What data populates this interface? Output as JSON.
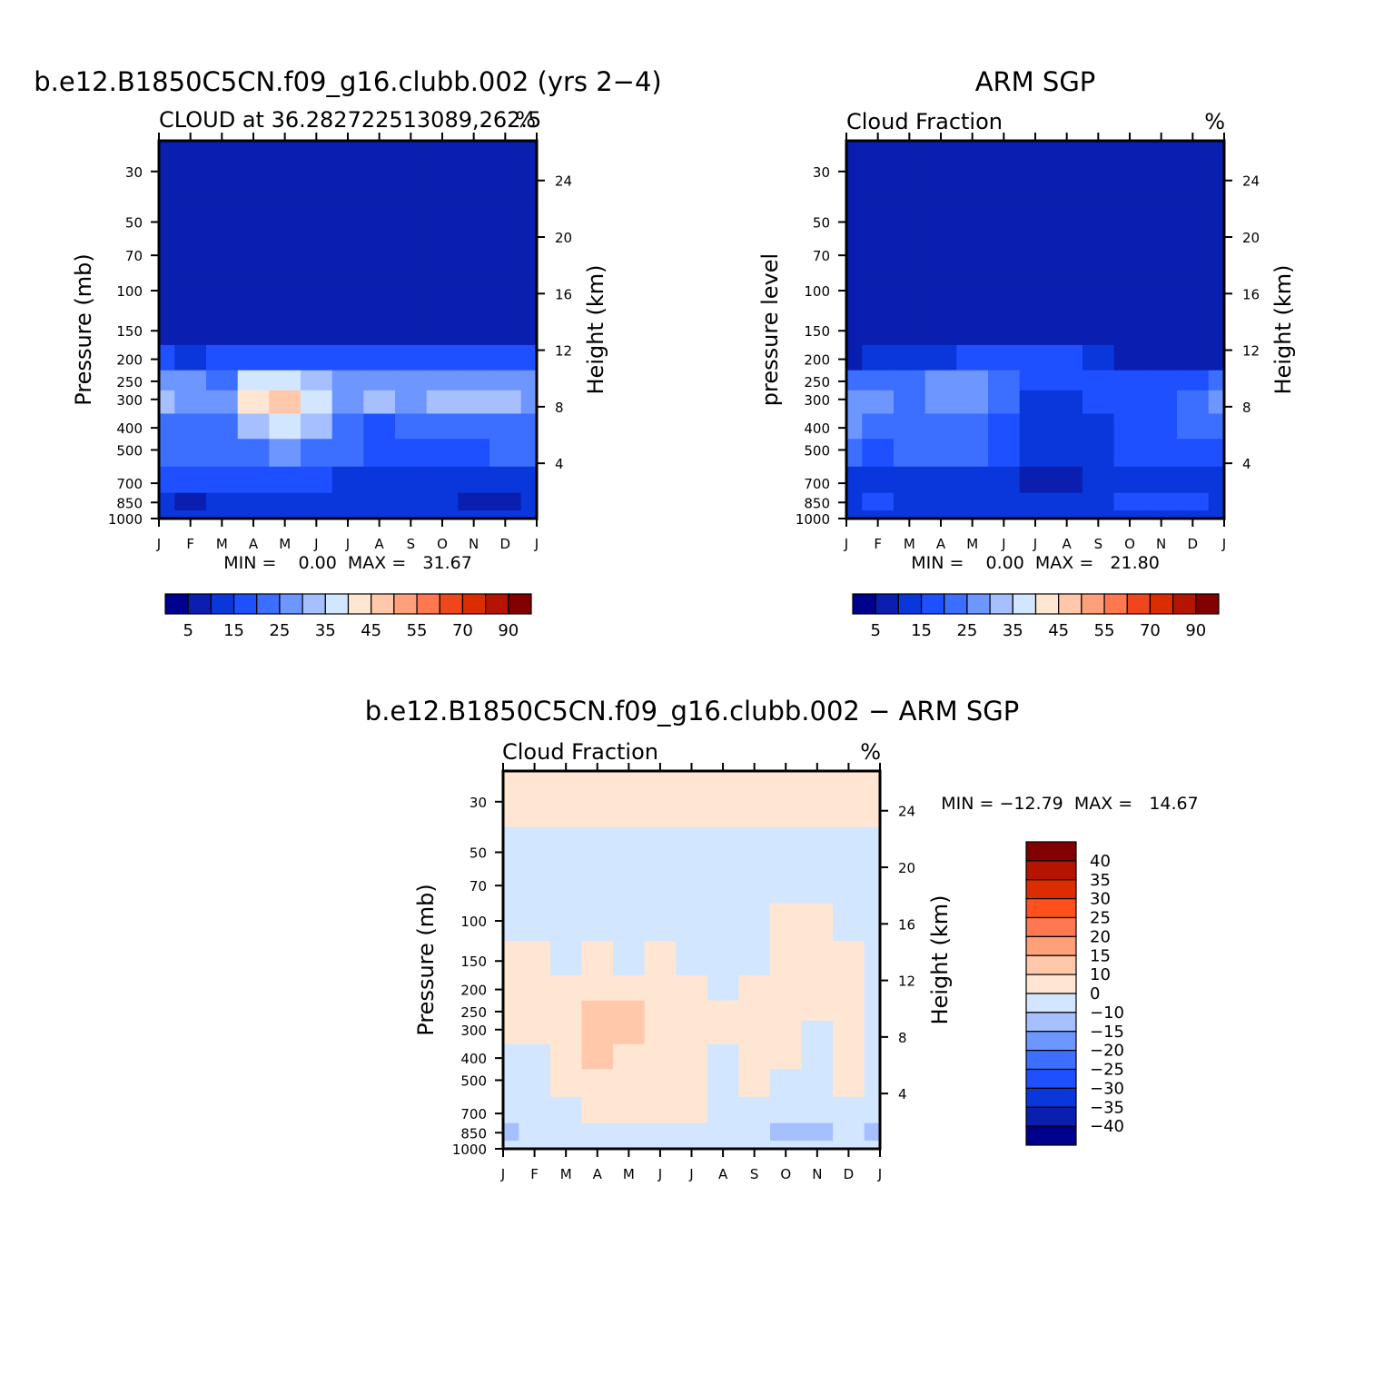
{
  "chart_data": [
    {
      "type": "heatmap",
      "id": "p1",
      "title": "b.e12.B1850C5CN.f09_g16.clubb.002 (yrs 2−4)",
      "subtitle_left": "CLOUD at 36.282722513089,262.5",
      "subtitle_right": "%",
      "ylabel": "Pressure (mb)",
      "ylabel_right": "Height (km)",
      "x_ticks": [
        "J",
        "F",
        "M",
        "A",
        "M",
        "J",
        "J",
        "A",
        "S",
        "O",
        "N",
        "D",
        "J"
      ],
      "y_ticks": [
        30,
        50,
        70,
        100,
        150,
        200,
        250,
        300,
        400,
        500,
        700,
        850,
        1000
      ],
      "y_tick_labels": [
        "30",
        "50",
        "70",
        "100",
        "150",
        "200",
        "250",
        "300",
        "400",
        "500",
        "700",
        "850",
        "1000"
      ],
      "height_ticks": [
        4,
        8,
        12,
        16,
        20,
        24
      ],
      "height_tick_labels": [
        "4",
        "8",
        "12",
        "16",
        "20",
        "24"
      ],
      "min": 0.0,
      "max": 31.67,
      "minmax_label": "MIN =    0.00  MAX =   31.67",
      "colorbar_labels": [
        "5",
        "15",
        "25",
        "35",
        "45",
        "55",
        "70",
        "90"
      ],
      "grid": [
        [
          1,
          1,
          1,
          1,
          1,
          1,
          1,
          1,
          1,
          1,
          1,
          1,
          1
        ],
        [
          1,
          1,
          1,
          1,
          1,
          1,
          1,
          1,
          1,
          1,
          1,
          1,
          1
        ],
        [
          1,
          1,
          1,
          1,
          1,
          1,
          1,
          1,
          1,
          1,
          1,
          1,
          1
        ],
        [
          1,
          1,
          1,
          1,
          1,
          1,
          1,
          1,
          1,
          1,
          1,
          1,
          1
        ],
        [
          1,
          1,
          1,
          1,
          1,
          1,
          1,
          1,
          1,
          1,
          1,
          1,
          1
        ],
        [
          3,
          2,
          3,
          3,
          3,
          3,
          3,
          3,
          3,
          3,
          3,
          3,
          3
        ],
        [
          5,
          5,
          4,
          7,
          7,
          6,
          5,
          5,
          5,
          5,
          5,
          5,
          5
        ],
        [
          6,
          5,
          5,
          8,
          9,
          7,
          5,
          6,
          5,
          6,
          6,
          6,
          5
        ],
        [
          4,
          4,
          4,
          6,
          7,
          6,
          4,
          3,
          4,
          4,
          4,
          4,
          4
        ],
        [
          4,
          4,
          4,
          4,
          5,
          4,
          4,
          3,
          3,
          3,
          3,
          4,
          4
        ],
        [
          3,
          3,
          3,
          3,
          3,
          3,
          2,
          2,
          2,
          2,
          2,
          2,
          2
        ],
        [
          2,
          1,
          2,
          2,
          2,
          2,
          2,
          2,
          2,
          2,
          1,
          1,
          2
        ],
        [
          2,
          2,
          2,
          2,
          2,
          2,
          2,
          2,
          2,
          2,
          2,
          2,
          2
        ]
      ]
    },
    {
      "type": "heatmap",
      "id": "p2",
      "title": "ARM SGP",
      "subtitle_left": "Cloud Fraction",
      "subtitle_right": "%",
      "ylabel": "pressure level",
      "ylabel_right": "Height (km)",
      "x_ticks": [
        "J",
        "F",
        "M",
        "A",
        "M",
        "J",
        "J",
        "A",
        "S",
        "O",
        "N",
        "D",
        "J"
      ],
      "y_ticks": [
        30,
        50,
        70,
        100,
        150,
        200,
        250,
        300,
        400,
        500,
        700,
        850,
        1000
      ],
      "y_tick_labels": [
        "30",
        "50",
        "70",
        "100",
        "150",
        "200",
        "250",
        "300",
        "400",
        "500",
        "700",
        "850",
        "1000"
      ],
      "height_ticks": [
        4,
        8,
        12,
        16,
        20,
        24
      ],
      "height_tick_labels": [
        "4",
        "8",
        "12",
        "16",
        "20",
        "24"
      ],
      "min": 0.0,
      "max": 21.8,
      "minmax_label": "MIN =    0.00  MAX =   21.80",
      "colorbar_labels": [
        "5",
        "15",
        "25",
        "35",
        "45",
        "55",
        "70",
        "90"
      ],
      "grid": [
        [
          1,
          1,
          1,
          1,
          1,
          1,
          1,
          1,
          1,
          1,
          1,
          1,
          1
        ],
        [
          1,
          1,
          1,
          1,
          1,
          1,
          1,
          1,
          1,
          1,
          1,
          1,
          1
        ],
        [
          1,
          1,
          1,
          1,
          1,
          1,
          1,
          1,
          1,
          1,
          1,
          1,
          1
        ],
        [
          1,
          1,
          1,
          1,
          1,
          1,
          1,
          1,
          1,
          1,
          1,
          1,
          1
        ],
        [
          1,
          1,
          1,
          1,
          1,
          1,
          1,
          1,
          1,
          1,
          1,
          1,
          1
        ],
        [
          1,
          2,
          2,
          2,
          3,
          3,
          3,
          3,
          2,
          1,
          1,
          1,
          1
        ],
        [
          4,
          4,
          4,
          5,
          5,
          4,
          3,
          3,
          3,
          3,
          3,
          3,
          4
        ],
        [
          5,
          5,
          4,
          5,
          5,
          4,
          2,
          2,
          3,
          3,
          3,
          4,
          5
        ],
        [
          5,
          4,
          4,
          4,
          4,
          3,
          2,
          2,
          2,
          3,
          3,
          4,
          4
        ],
        [
          4,
          3,
          4,
          4,
          4,
          3,
          2,
          2,
          2,
          3,
          3,
          3,
          3
        ],
        [
          2,
          2,
          2,
          2,
          2,
          2,
          1,
          1,
          2,
          2,
          2,
          2,
          2
        ],
        [
          2,
          3,
          2,
          2,
          2,
          2,
          2,
          2,
          2,
          3,
          3,
          3,
          2
        ],
        [
          2,
          2,
          2,
          2,
          2,
          2,
          2,
          2,
          2,
          2,
          2,
          2,
          2
        ]
      ]
    },
    {
      "type": "heatmap",
      "id": "p3",
      "title": "b.e12.B1850C5CN.f09_g16.clubb.002 − ARM SGP",
      "subtitle_left": "Cloud Fraction",
      "subtitle_right": "%",
      "ylabel": "Pressure (mb)",
      "ylabel_right": "Height (km)",
      "x_ticks": [
        "J",
        "F",
        "M",
        "A",
        "M",
        "J",
        "J",
        "A",
        "S",
        "O",
        "N",
        "D",
        "J"
      ],
      "y_ticks": [
        30,
        50,
        70,
        100,
        150,
        200,
        250,
        300,
        400,
        500,
        700,
        850,
        1000
      ],
      "y_tick_labels": [
        "30",
        "50",
        "70",
        "100",
        "150",
        "200",
        "250",
        "300",
        "400",
        "500",
        "700",
        "850",
        "1000"
      ],
      "height_ticks": [
        4,
        8,
        12,
        16,
        20,
        24
      ],
      "height_tick_labels": [
        "4",
        "8",
        "12",
        "16",
        "20",
        "24"
      ],
      "min": -12.79,
      "max": 14.67,
      "minmax_label": "MIN = −12.79  MAX =   14.67",
      "colorbar_labels": [
        "40",
        "35",
        "30",
        "25",
        "20",
        "15",
        "10",
        "0",
        "−10",
        "−15",
        "−20",
        "−25",
        "−30",
        "−35",
        "−40"
      ],
      "grid": [
        [
          8,
          8,
          8,
          8,
          8,
          8,
          8,
          8,
          8,
          8,
          8,
          8,
          8
        ],
        [
          7,
          7,
          7,
          7,
          7,
          7,
          7,
          7,
          7,
          7,
          7,
          7,
          7
        ],
        [
          7,
          7,
          7,
          7,
          7,
          7,
          7,
          7,
          7,
          7,
          7,
          7,
          7
        ],
        [
          7,
          7,
          7,
          7,
          7,
          7,
          7,
          7,
          7,
          8,
          8,
          7,
          7
        ],
        [
          8,
          8,
          7,
          8,
          7,
          8,
          7,
          7,
          7,
          8,
          8,
          8,
          7
        ],
        [
          8,
          8,
          8,
          8,
          8,
          8,
          8,
          7,
          8,
          8,
          8,
          8,
          7
        ],
        [
          8,
          8,
          8,
          9,
          9,
          8,
          8,
          8,
          8,
          8,
          8,
          8,
          7
        ],
        [
          8,
          8,
          8,
          9,
          9,
          8,
          8,
          8,
          8,
          8,
          7,
          8,
          7
        ],
        [
          7,
          7,
          8,
          9,
          8,
          8,
          8,
          7,
          8,
          8,
          7,
          8,
          7
        ],
        [
          7,
          7,
          8,
          8,
          8,
          8,
          8,
          7,
          8,
          7,
          7,
          8,
          7
        ],
        [
          7,
          7,
          7,
          8,
          8,
          8,
          8,
          7,
          7,
          7,
          7,
          7,
          7
        ],
        [
          6,
          7,
          7,
          7,
          7,
          7,
          7,
          7,
          7,
          6,
          6,
          7,
          6
        ],
        [
          7,
          7,
          7,
          7,
          7,
          7,
          7,
          7,
          7,
          7,
          7,
          7,
          7
        ]
      ]
    }
  ],
  "palettes": {
    "cloud": [
      "#00008e",
      "#0a1eaf",
      "#0a37dc",
      "#1e50ff",
      "#3c6eff",
      "#6e96ff",
      "#a5bfff",
      "#d2e6ff",
      "#ffe6d2",
      "#ffc8aa",
      "#ffa07a",
      "#ff7850",
      "#f0461e",
      "#dc2d00",
      "#b41400",
      "#820000"
    ],
    "diff": [
      "#00008e",
      "#0a1eaf",
      "#0a37dc",
      "#1e50ff",
      "#3c6eff",
      "#6e96ff",
      "#a5bfff",
      "#d2e6ff",
      "#ffe6d2",
      "#ffc8aa",
      "#ffa07a",
      "#ff7850",
      "#ff501e",
      "#dc2d00",
      "#b41400",
      "#820000"
    ]
  }
}
